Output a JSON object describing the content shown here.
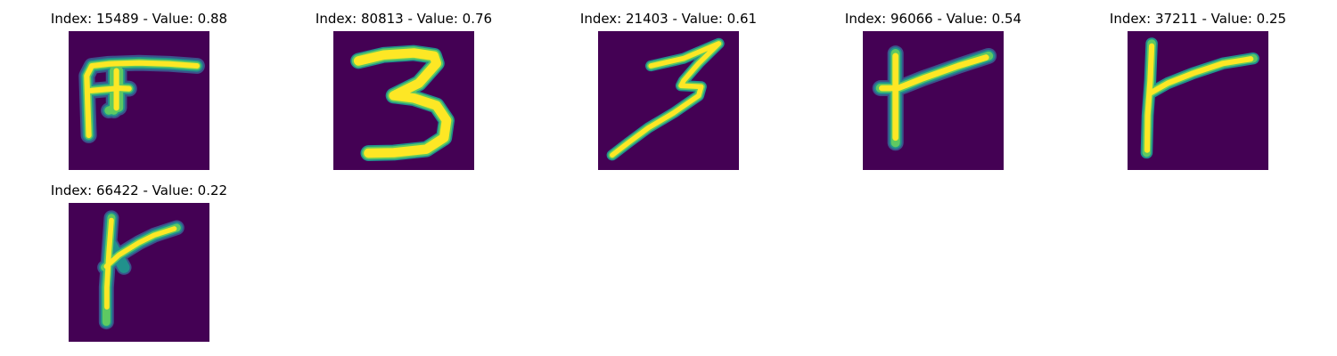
{
  "colors": {
    "background": "#440154",
    "stroke_core": "#fde725",
    "stroke_mid": "#5ec962",
    "stroke_edge": "#21918c",
    "stroke_outer": "#3b528b"
  },
  "panels": [
    {
      "title": "Index: 15489 - Value: 0.88",
      "digit_shape": "F-like"
    },
    {
      "title": "Index: 80813 - Value: 0.76",
      "digit_shape": "3"
    },
    {
      "title": "Index: 21403 - Value: 0.61",
      "digit_shape": "3"
    },
    {
      "title": "Index: 96066 - Value: 0.54",
      "digit_shape": "Y-like"
    },
    {
      "title": "Index: 37211 - Value: 0.25",
      "digit_shape": "Y-like"
    },
    {
      "title": "Index: 66422 - Value: 0.22",
      "digit_shape": "Y-like"
    }
  ]
}
